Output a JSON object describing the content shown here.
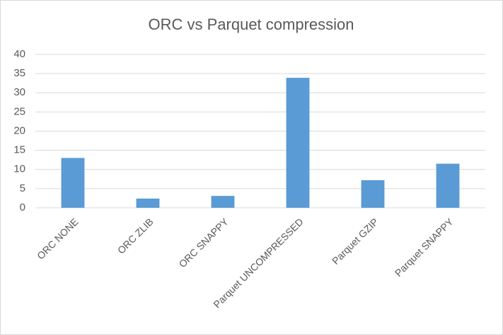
{
  "chart_data": {
    "type": "bar",
    "title": "ORC vs Parquet compression",
    "categories": [
      "ORC NONE",
      "ORC ZLIB",
      "ORC SNAPPY",
      "Parquet UNCOMPRESSED",
      "Parquet GZIP",
      "Parquet SNAPPY"
    ],
    "values": [
      13,
      2.4,
      3.1,
      33.9,
      7.2,
      11.5
    ],
    "color": "#5b9bd5",
    "ylim": [
      0,
      40
    ],
    "yticks": [
      0,
      5,
      10,
      15,
      20,
      25,
      30,
      35,
      40
    ],
    "grid": true
  }
}
